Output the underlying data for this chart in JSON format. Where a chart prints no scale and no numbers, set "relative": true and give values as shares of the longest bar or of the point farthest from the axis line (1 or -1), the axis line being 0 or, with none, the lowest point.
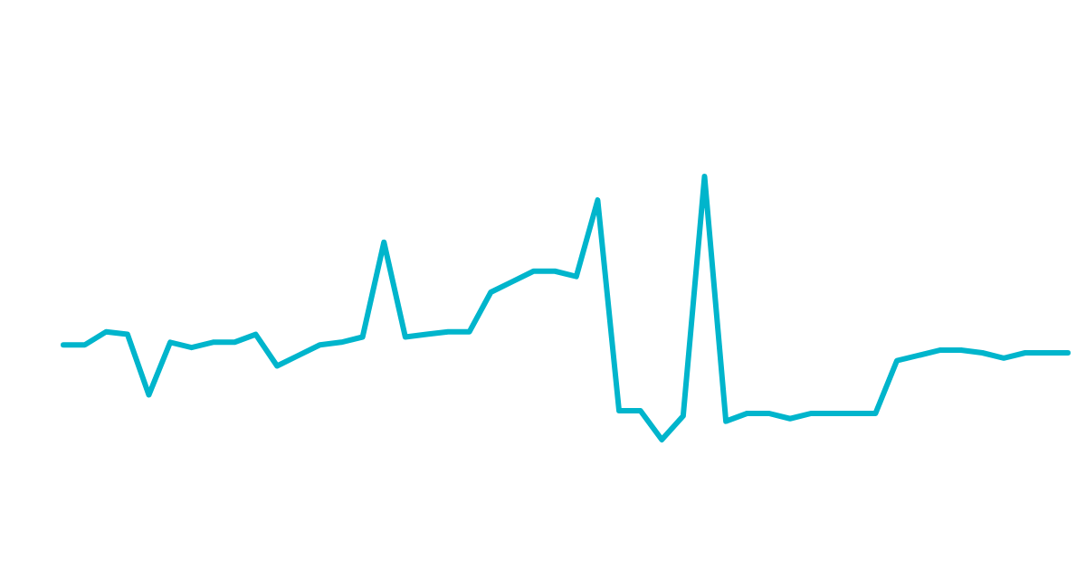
{
  "chart_data": {
    "type": "line",
    "relative": true,
    "categories": [
      null,
      null,
      null,
      null,
      null,
      null,
      null,
      null,
      null,
      null,
      null,
      null,
      null,
      null,
      null,
      null,
      null,
      null,
      null,
      null,
      null,
      null,
      null,
      null,
      null,
      null,
      null,
      null,
      null,
      null,
      null,
      null,
      null,
      null,
      null,
      null,
      null,
      null,
      null,
      null,
      null,
      null,
      null,
      null,
      null,
      null,
      null,
      null
    ],
    "series": [
      {
        "color": "#00b5cc",
        "values": [
          0.36,
          0.36,
          0.41,
          0.4,
          0.17,
          0.37,
          0.35,
          0.37,
          0.37,
          0.4,
          0.28,
          0.32,
          0.36,
          0.37,
          0.39,
          0.75,
          0.39,
          0.4,
          0.41,
          0.41,
          0.56,
          0.6,
          0.64,
          0.64,
          0.62,
          0.91,
          0.11,
          0.11,
          0,
          0.09,
          1,
          0.07,
          0.1,
          0.1,
          0.08,
          0.1,
          0.1,
          0.1,
          0.1,
          0.3,
          0.32,
          0.34,
          0.34,
          0.33,
          0.31,
          0.33,
          0.33,
          0.33
        ]
      }
    ]
  }
}
